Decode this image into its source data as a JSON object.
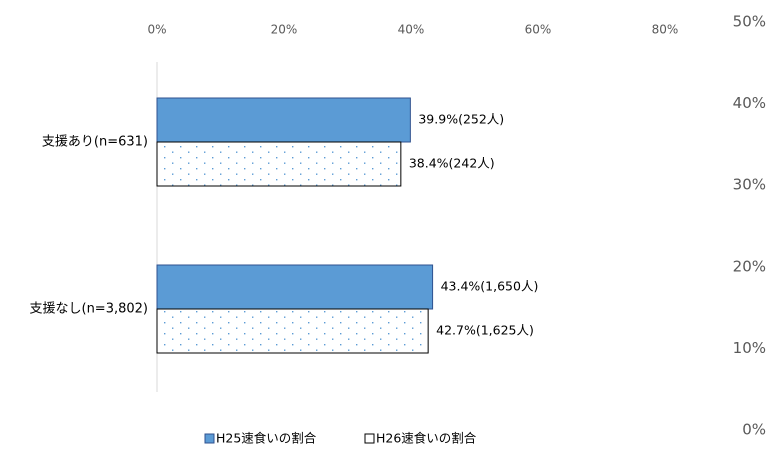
{
  "chart_data": {
    "type": "bar",
    "orientation": "horizontal",
    "categories": [
      "支援あり(n=631)",
      "支援なし(n=3,802)"
    ],
    "series": [
      {
        "name": "H25速食いの割合",
        "color": "#5b9bd5",
        "pattern": "solid",
        "values": [
          39.9,
          43.4
        ],
        "value_labels": [
          "39.9%(252人)",
          "43.4%(1,650人)"
        ]
      },
      {
        "name": "H26速食いの割合",
        "color": "#5b9bd5",
        "pattern": "dotted",
        "values": [
          38.4,
          42.7
        ],
        "value_labels": [
          "38.4%(242人)",
          "42.7%(1,625人)"
        ]
      }
    ],
    "xlim": [
      0,
      80
    ],
    "xticks": [
      {
        "value": 0,
        "label": "0%"
      },
      {
        "value": 20,
        "label": "20%"
      },
      {
        "value": 40,
        "label": "40%"
      },
      {
        "value": 60,
        "label": "60%"
      },
      {
        "value": 80,
        "label": "80%"
      }
    ],
    "y2lim": [
      0,
      50
    ],
    "y2ticks": [
      {
        "value": 0,
        "label": "0%"
      },
      {
        "value": 10,
        "label": "10%"
      },
      {
        "value": 20,
        "label": "20%"
      },
      {
        "value": 30,
        "label": "30%"
      },
      {
        "value": 40,
        "label": "40%"
      },
      {
        "value": 50,
        "label": "50%"
      }
    ],
    "legend": "bottom"
  }
}
